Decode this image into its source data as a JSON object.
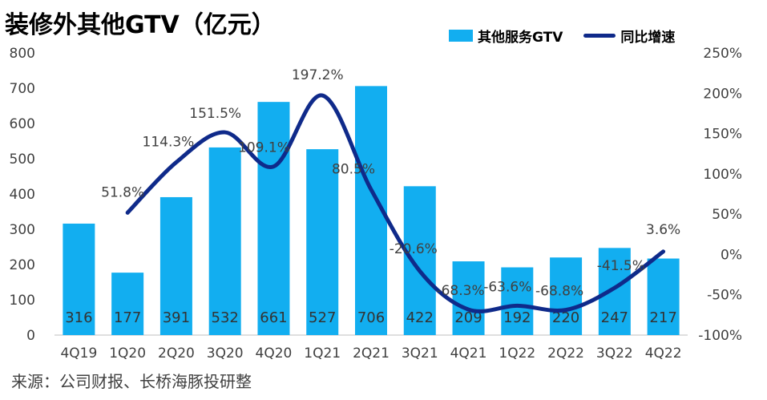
{
  "title": "装修外其他GTV（亿元）",
  "source": "来源：公司财报、长桥海豚投研整",
  "colors": {
    "bar": "#12aef0",
    "line": "#0f2a8a"
  },
  "chart_data": {
    "type": "bar",
    "categories": [
      "4Q19",
      "1Q20",
      "2Q20",
      "3Q20",
      "4Q20",
      "1Q21",
      "2Q21",
      "3Q21",
      "4Q21",
      "1Q22",
      "2Q22",
      "3Q22",
      "4Q22"
    ],
    "series": [
      {
        "name": "其他服务GTV",
        "type": "bar",
        "axis": "left",
        "values": [
          316,
          177,
          391,
          532,
          661,
          527,
          706,
          422,
          209,
          192,
          220,
          247,
          217
        ],
        "labels": [
          "316",
          "177",
          "391",
          "532",
          "661",
          "527",
          "706",
          "422",
          "209",
          "192",
          "220",
          "247",
          "217"
        ]
      },
      {
        "name": "同比增速",
        "type": "line",
        "axis": "right",
        "values": [
          null,
          51.8,
          114.3,
          151.5,
          109.1,
          197.2,
          80.5,
          -20.6,
          -68.3,
          -63.6,
          -68.8,
          -41.5,
          3.6
        ],
        "labels": [
          null,
          "51.8%",
          "114.3%",
          "151.5%",
          "109.1%",
          "197.2%",
          "80.5%",
          "-20.6%",
          "-68.3%",
          "-63.6%",
          "-68.8%",
          "-41.5%",
          "3.6%"
        ]
      }
    ],
    "y_left": {
      "ylim": [
        0,
        800
      ],
      "ticks": [
        "0",
        "100",
        "200",
        "300",
        "400",
        "500",
        "600",
        "700",
        "800"
      ],
      "tick_values": [
        0,
        100,
        200,
        300,
        400,
        500,
        600,
        700,
        800
      ]
    },
    "y_right": {
      "ylim": [
        -100,
        250
      ],
      "ticks": [
        "-100%",
        "-50%",
        "0%",
        "50%",
        "100%",
        "150%",
        "200%",
        "250%"
      ],
      "tick_values": [
        -100,
        -50,
        0,
        50,
        100,
        150,
        200,
        250
      ]
    },
    "grid": false,
    "legend": "top-right"
  }
}
